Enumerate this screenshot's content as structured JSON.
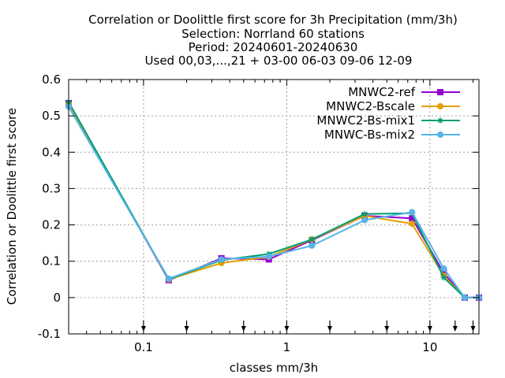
{
  "chart_data": {
    "type": "line",
    "title_lines": [
      "Correlation or Doolittle first score  for 3h Precipitation (mm/3h)",
      "Selection: Norrland     60 stations",
      "Period: 20240601-20240630",
      "Used 00,03,...,21 + 03-00 06-03 09-06 12-09"
    ],
    "xlabel": "classes mm/3h",
    "ylabel": "Correlation or Doolittle first score",
    "x_scale": "log",
    "xlim": [
      0.03,
      22
    ],
    "ylim": [
      -0.1,
      0.6
    ],
    "x_ticks": [
      {
        "value": 0.1,
        "label": "0.1"
      },
      {
        "value": 1,
        "label": "1"
      },
      {
        "value": 10,
        "label": "10"
      }
    ],
    "y_ticks": [
      {
        "value": -0.1,
        "label": "-0.1"
      },
      {
        "value": 0,
        "label": "0"
      },
      {
        "value": 0.1,
        "label": "0.1"
      },
      {
        "value": 0.2,
        "label": "0.2"
      },
      {
        "value": 0.3,
        "label": "0.3"
      },
      {
        "value": 0.4,
        "label": "0.4"
      },
      {
        "value": 0.5,
        "label": "0.5"
      },
      {
        "value": 0.6,
        "label": "0.6"
      }
    ],
    "class_limits": [
      0.1,
      0.2,
      0.5,
      1,
      2,
      5,
      10,
      15,
      20
    ],
    "grid": true,
    "legend_position": "top-right",
    "x": [
      0.03,
      0.15,
      0.35,
      0.75,
      1.5,
      3.5,
      7.5,
      12.5,
      17.5,
      22
    ],
    "series": [
      {
        "name": "MNWC2-ref",
        "color": "#9400d3",
        "marker": "square",
        "values": [
          0.535,
          0.048,
          0.108,
          0.105,
          0.158,
          0.225,
          0.218,
          0.068,
          0.0,
          0.0
        ]
      },
      {
        "name": "MNWC2-Bscale",
        "color": "#e69f00",
        "marker": "circle",
        "values": [
          0.533,
          0.05,
          0.095,
          0.112,
          0.16,
          0.225,
          0.203,
          0.06,
          0.0,
          0.0
        ]
      },
      {
        "name": "MNWC2-Bs-mix1",
        "color": "#009e73",
        "marker": "star",
        "values": [
          0.538,
          0.05,
          0.103,
          0.12,
          0.16,
          0.23,
          0.232,
          0.055,
          0.0,
          0.0
        ]
      },
      {
        "name": "MNWC-Bs-mix2",
        "color": "#56b4e9",
        "marker": "circle",
        "values": [
          0.525,
          0.052,
          0.105,
          0.113,
          0.143,
          0.213,
          0.235,
          0.08,
          0.0,
          0.0
        ]
      }
    ]
  }
}
